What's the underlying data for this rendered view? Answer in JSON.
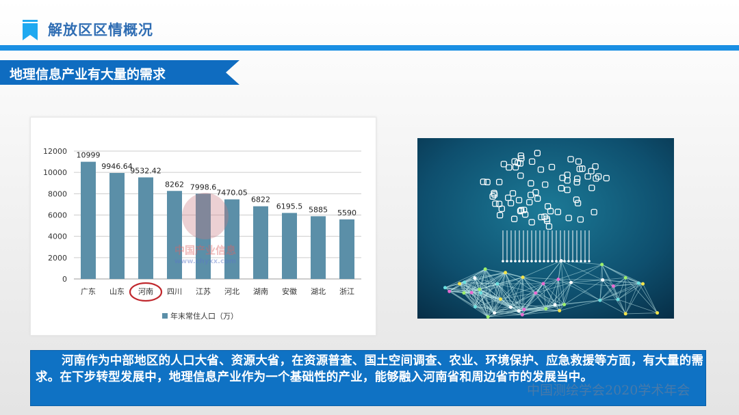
{
  "header": {
    "title": "解放区区情概况",
    "accent": "#1a8fe3"
  },
  "section": {
    "title": "地理信息产业有大量的需求",
    "color": "#0f6cc0"
  },
  "chart_data": {
    "type": "bar",
    "categories": [
      "广东",
      "山东",
      "河南",
      "四川",
      "江苏",
      "河北",
      "湖南",
      "安徽",
      "湖北",
      "浙江"
    ],
    "series": [
      {
        "name": "年末常住人口（万）",
        "values": [
          10999,
          9946.64,
          9532.42,
          8262,
          7998.6,
          7470.05,
          6822,
          6195.5,
          5885,
          5590
        ]
      }
    ],
    "data_labels": [
      "10999",
      "9946.64",
      "9532.42",
      "8262",
      "7998.6",
      "7470.05",
      "6822",
      "6195.5",
      "5885",
      "5590"
    ],
    "yticks": [
      "0",
      "2000",
      "4000",
      "6000",
      "8000",
      "10000",
      "12000"
    ],
    "ylim": [
      0,
      12000
    ],
    "grid": true,
    "legend": "bottom",
    "highlighted_category": "河南",
    "bar_color": "#5b8fa8",
    "highlight_color": "#c0282d",
    "watermark": "中国产业信息 www.chyxx.com"
  },
  "image": {
    "icon": "iot-cloud-network-illustration"
  },
  "body": {
    "paragraph": "河南作为中部地区的人口大省、资源大省，在资源普查、国土空间调查、农业、环境保护、应急救援等方面，有大量的需求。在下步转型发展中，地理信息产业作为一个基础性的产业，能够融入河南省和周边省市的发展当中。"
  },
  "watermark": "中国测绘学会2020学术年会"
}
